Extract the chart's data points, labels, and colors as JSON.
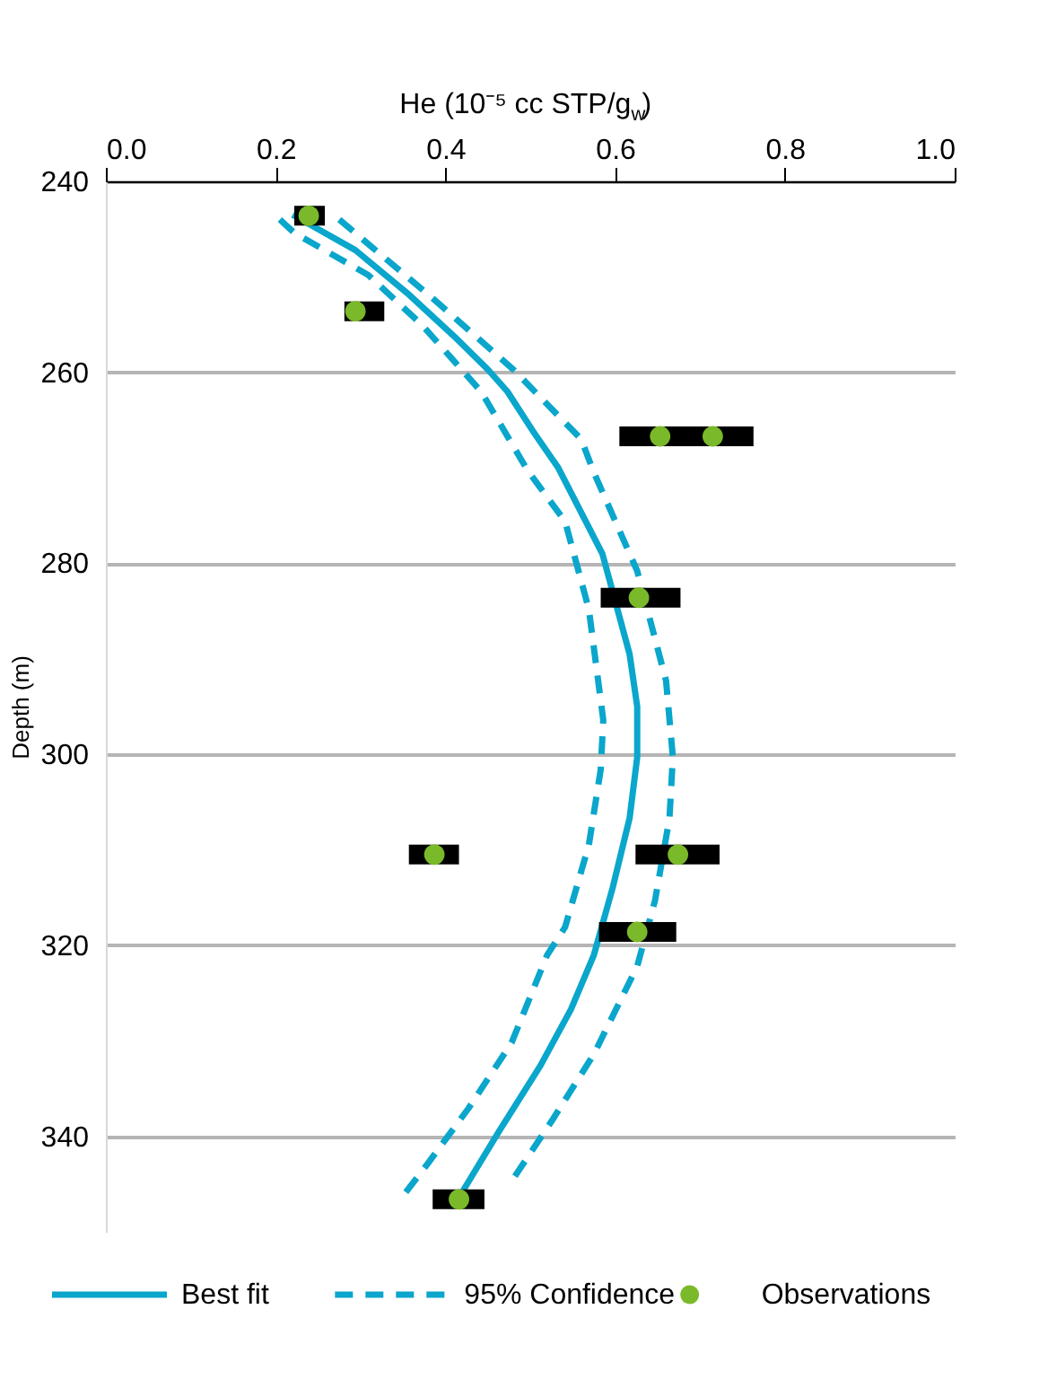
{
  "chart_data": {
    "type": "line",
    "xlabel": "He (10⁻⁵ cc STP/g$_{w}$)",
    "ylabel": "Depth (m)",
    "xlim": [
      0,
      1
    ],
    "xticks": [
      {
        "value": 0,
        "label": "0.0"
      },
      {
        "value": 0.2,
        "label": "0.2"
      },
      {
        "value": 0.4,
        "label": "0.4"
      },
      {
        "value": 0.6,
        "label": "0.6"
      },
      {
        "value": 0.8,
        "label": "0.8"
      },
      {
        "value": 1,
        "label": "1.0"
      }
    ],
    "ylim": [
      350,
      240
    ],
    "yticks": [
      240,
      260,
      280,
      300,
      320,
      340
    ],
    "grid": "y",
    "legend": "bottom",
    "series": [
      {
        "name": "Best fit",
        "line_style": "solid",
        "marker": "none",
        "color": "#0aa6cc",
        "x": [
          0.22,
          0.294,
          0.355,
          0.41,
          0.45,
          0.473,
          0.505,
          0.533,
          0.585,
          0.617,
          0.626,
          0.626,
          0.617,
          0.597,
          0.575,
          0.548,
          0.512,
          0.463,
          0.416
        ],
        "values": [
          243.5,
          247.2,
          251.7,
          256.2,
          259.7,
          262,
          266.4,
          270,
          279,
          289.5,
          295,
          300.3,
          306.7,
          314,
          321,
          326.7,
          332.6,
          339.5,
          346.4
        ]
      },
      {
        "name": "95% Confidence",
        "line_style": "dashed",
        "marker": "none",
        "color": "#0aa6cc",
        "x": [
          0.275,
          0.387,
          0.48,
          0.56,
          0.575,
          0.626,
          0.66,
          0.668,
          0.664,
          0.647,
          0.626,
          0.575,
          0.526,
          0.478
        ],
        "values": [
          244,
          252.4,
          259.7,
          267,
          270.5,
          280.8,
          292.3,
          300.3,
          306.7,
          315.3,
          322.2,
          331.4,
          338.3,
          344.7
        ]
      },
      {
        "line_style": "dashed",
        "marker": "none",
        "color": "#0aa6cc",
        "x": [
          0.205,
          0.222,
          0.309,
          0.372,
          0.442,
          0.497,
          0.541,
          0.569,
          0.586,
          0.583,
          0.569,
          0.541,
          0.52,
          0.478,
          0.427,
          0.378,
          0.347
        ],
        "values": [
          244,
          245.4,
          249.8,
          255,
          262,
          270.3,
          275.6,
          284.8,
          296.4,
          301.6,
          309.5,
          318.1,
          321,
          330.2,
          337.1,
          343,
          346.6
        ]
      },
      {
        "name": "Observations",
        "type": "scatter",
        "marker": "circle",
        "color": "#7ab929",
        "x": [
          0.239,
          0.294,
          0.653,
          0.715,
          0.628,
          0.387,
          0.674,
          0.626,
          0.416
        ],
        "values": [
          243.6,
          253.6,
          266.7,
          266.7,
          283.6,
          310.5,
          310.5,
          318.6,
          346.6
        ],
        "xerrors": [
          [
            0.222,
            0.258
          ],
          [
            0.281,
            0.328
          ],
          [
            0.605,
            0.7
          ],
          [
            0.665,
            0.763
          ],
          [
            0.583,
            0.677
          ],
          [
            0.357,
            0.416
          ],
          [
            0.624,
            0.723
          ],
          [
            0.581,
            0.672
          ],
          [
            0.385,
            0.446
          ]
        ]
      }
    ]
  }
}
